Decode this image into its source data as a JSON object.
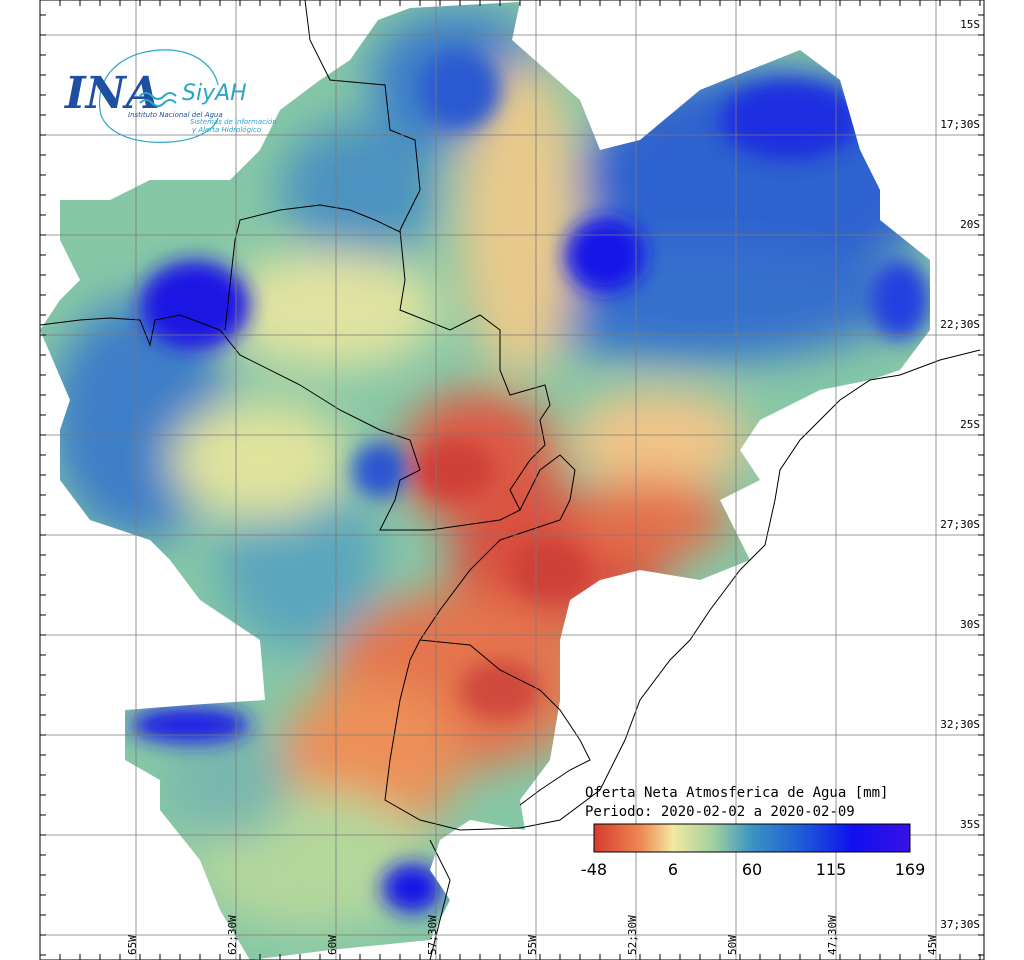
{
  "logo": {
    "ina": "INA",
    "siyah": "SiyAH",
    "institute": "Instituto Nacional del Agua",
    "system_line1": "Sistemas de información",
    "system_line2": "y Alerta Hidrológico"
  },
  "title": {
    "line1": "Oferta Neta Atmosferica de Agua [mm]",
    "line2": "Periodo: 2020-02-02 a 2020-02-09"
  },
  "colorbar": {
    "ticks": [
      "-48",
      "6",
      "60",
      "115",
      "169"
    ],
    "stops": [
      "#d73b2e",
      "#ee8a55",
      "#f3e9a0",
      "#9fd0a0",
      "#3a93c3",
      "#1f5fd6",
      "#1010f0",
      "#3a10e6"
    ]
  },
  "lat_labels": [
    "15S",
    "17;30S",
    "20S",
    "22;30S",
    "25S",
    "27;30S",
    "30S",
    "32;30S",
    "35S",
    "37;30S"
  ],
  "lon_labels": [
    "65W",
    "62;30W",
    "60W",
    "57;30W",
    "55W",
    "52;30W",
    "50W",
    "47;30W",
    "45W"
  ],
  "colors": {
    "red": "#d94a3c",
    "orange": "#f09a5e",
    "yellow": "#f5e6a2",
    "green": "#a8d39e",
    "teal": "#4da6c0",
    "blue": "#2a6fd0",
    "deepblue": "#1212e6"
  }
}
